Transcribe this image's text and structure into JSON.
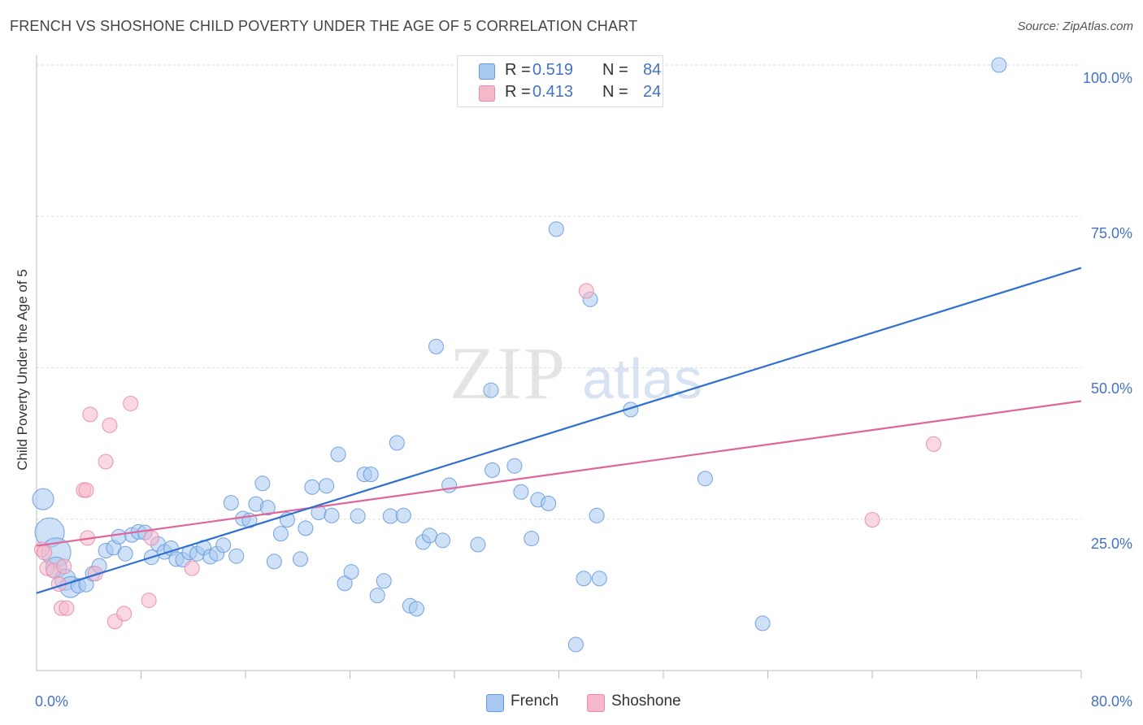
{
  "title": "FRENCH VS SHOSHONE CHILD POVERTY UNDER THE AGE OF 5 CORRELATION CHART",
  "source": "Source: ZipAtlas.com",
  "watermark": {
    "zip": "ZIP",
    "atlas": "atlas"
  },
  "colors": {
    "french_fill": "#a8c8f0",
    "french_stroke": "#6699dd",
    "french_line": "#2f6fd0",
    "shoshone_fill": "#f5b8cb",
    "shoshone_stroke": "#e88aa8",
    "shoshone_line": "#e0659a",
    "tick_text": "#4472c4",
    "grid": "#dddddd"
  },
  "stats": [
    {
      "r_label": "R =",
      "r_value": "0.519",
      "n_label": "N =",
      "n_value": "84"
    },
    {
      "r_label": "R =",
      "r_value": "0.413",
      "n_label": "N =",
      "n_value": "24"
    }
  ],
  "legend": {
    "french": "French",
    "shoshone": "Shoshone"
  },
  "chart_data": {
    "type": "scatter",
    "title": "FRENCH VS SHOSHONE CHILD POVERTY UNDER THE AGE OF 5 CORRELATION CHART",
    "xlabel": "",
    "ylabel": "Child Poverty Under the Age of 5",
    "xlim": [
      0,
      80
    ],
    "ylim": [
      0,
      100
    ],
    "x_tick_labels": [
      "0.0%",
      "80.0%"
    ],
    "y_ticks": [
      25,
      50,
      75,
      100
    ],
    "y_tick_labels": [
      "25.0%",
      "50.0%",
      "75.0%",
      "100.0%"
    ],
    "grid": true,
    "legend_position": "bottom",
    "series": [
      {
        "name": "French",
        "r": 0.519,
        "n": 84,
        "trend": {
          "x": [
            0,
            80
          ],
          "y": [
            12.8,
            66.5
          ]
        },
        "points": [
          {
            "x": 0.5,
            "y": 28.3,
            "s": 2
          },
          {
            "x": 1.0,
            "y": 22.8,
            "s": 3
          },
          {
            "x": 1.5,
            "y": 19.5,
            "s": 3
          },
          {
            "x": 1.5,
            "y": 17.0,
            "s": 2
          },
          {
            "x": 2.2,
            "y": 15.0,
            "s": 2
          },
          {
            "x": 2.6,
            "y": 13.8,
            "s": 2
          },
          {
            "x": 3.2,
            "y": 14.0,
            "s": 1
          },
          {
            "x": 3.8,
            "y": 14.2,
            "s": 1
          },
          {
            "x": 4.3,
            "y": 16.0,
            "s": 1
          },
          {
            "x": 4.8,
            "y": 17.3,
            "s": 1
          },
          {
            "x": 5.3,
            "y": 19.8,
            "s": 1
          },
          {
            "x": 5.9,
            "y": 20.3,
            "s": 1
          },
          {
            "x": 6.3,
            "y": 22.1,
            "s": 1
          },
          {
            "x": 6.8,
            "y": 19.3,
            "s": 1
          },
          {
            "x": 7.3,
            "y": 22.4,
            "s": 1
          },
          {
            "x": 7.8,
            "y": 22.9,
            "s": 1
          },
          {
            "x": 8.3,
            "y": 22.8,
            "s": 1
          },
          {
            "x": 8.8,
            "y": 18.7,
            "s": 1
          },
          {
            "x": 9.3,
            "y": 20.9,
            "s": 1
          },
          {
            "x": 9.8,
            "y": 19.6,
            "s": 1
          },
          {
            "x": 10.3,
            "y": 20.2,
            "s": 1
          },
          {
            "x": 10.7,
            "y": 18.4,
            "s": 1
          },
          {
            "x": 11.2,
            "y": 18.3,
            "s": 1
          },
          {
            "x": 11.7,
            "y": 19.5,
            "s": 1
          },
          {
            "x": 12.3,
            "y": 19.3,
            "s": 1
          },
          {
            "x": 12.8,
            "y": 20.3,
            "s": 1
          },
          {
            "x": 13.3,
            "y": 18.8,
            "s": 1
          },
          {
            "x": 13.8,
            "y": 19.3,
            "s": 1
          },
          {
            "x": 14.3,
            "y": 20.7,
            "s": 1
          },
          {
            "x": 15.3,
            "y": 18.9,
            "s": 1
          },
          {
            "x": 14.9,
            "y": 27.7,
            "s": 1
          },
          {
            "x": 15.8,
            "y": 25.1,
            "s": 1
          },
          {
            "x": 16.3,
            "y": 24.8,
            "s": 1
          },
          {
            "x": 16.8,
            "y": 27.5,
            "s": 1
          },
          {
            "x": 17.7,
            "y": 26.9,
            "s": 1
          },
          {
            "x": 17.3,
            "y": 30.9,
            "s": 1
          },
          {
            "x": 18.2,
            "y": 18.0,
            "s": 1
          },
          {
            "x": 18.7,
            "y": 22.6,
            "s": 1
          },
          {
            "x": 19.2,
            "y": 24.9,
            "s": 1
          },
          {
            "x": 20.2,
            "y": 18.4,
            "s": 1
          },
          {
            "x": 20.6,
            "y": 23.5,
            "s": 1
          },
          {
            "x": 21.1,
            "y": 30.3,
            "s": 1
          },
          {
            "x": 21.6,
            "y": 26.1,
            "s": 1
          },
          {
            "x": 22.2,
            "y": 30.5,
            "s": 1
          },
          {
            "x": 22.6,
            "y": 25.6,
            "s": 1
          },
          {
            "x": 23.1,
            "y": 35.7,
            "s": 1
          },
          {
            "x": 23.6,
            "y": 14.4,
            "s": 1
          },
          {
            "x": 24.1,
            "y": 16.3,
            "s": 1
          },
          {
            "x": 24.6,
            "y": 25.5,
            "s": 1
          },
          {
            "x": 25.1,
            "y": 32.4,
            "s": 1
          },
          {
            "x": 25.6,
            "y": 32.4,
            "s": 1
          },
          {
            "x": 26.1,
            "y": 12.4,
            "s": 1
          },
          {
            "x": 26.6,
            "y": 14.8,
            "s": 1
          },
          {
            "x": 27.1,
            "y": 25.5,
            "s": 1
          },
          {
            "x": 27.6,
            "y": 37.6,
            "s": 1
          },
          {
            "x": 28.1,
            "y": 25.6,
            "s": 1
          },
          {
            "x": 28.6,
            "y": 10.7,
            "s": 1
          },
          {
            "x": 29.1,
            "y": 10.2,
            "s": 1
          },
          {
            "x": 29.6,
            "y": 21.2,
            "s": 1
          },
          {
            "x": 30.1,
            "y": 22.3,
            "s": 1
          },
          {
            "x": 30.6,
            "y": 53.5,
            "s": 1
          },
          {
            "x": 31.1,
            "y": 21.5,
            "s": 1
          },
          {
            "x": 31.6,
            "y": 30.6,
            "s": 1
          },
          {
            "x": 33.8,
            "y": 20.8,
            "s": 1
          },
          {
            "x": 34.8,
            "y": 46.3,
            "s": 1
          },
          {
            "x": 34.9,
            "y": 33.1,
            "s": 1
          },
          {
            "x": 36.6,
            "y": 33.8,
            "s": 1
          },
          {
            "x": 37.1,
            "y": 29.5,
            "s": 1
          },
          {
            "x": 37.9,
            "y": 21.8,
            "s": 1
          },
          {
            "x": 38.4,
            "y": 28.2,
            "s": 1
          },
          {
            "x": 39.2,
            "y": 27.6,
            "s": 1
          },
          {
            "x": 39.6,
            "y": 100.0,
            "s": 1
          },
          {
            "x": 39.8,
            "y": 72.9,
            "s": 1
          },
          {
            "x": 41.3,
            "y": 4.3,
            "s": 1
          },
          {
            "x": 41.9,
            "y": 15.2,
            "s": 1
          },
          {
            "x": 42.4,
            "y": 61.3,
            "s": 1
          },
          {
            "x": 42.9,
            "y": 25.6,
            "s": 1
          },
          {
            "x": 43.1,
            "y": 15.2,
            "s": 1
          },
          {
            "x": 45.5,
            "y": 43.1,
            "s": 1
          },
          {
            "x": 46.1,
            "y": 100.0,
            "s": 1
          },
          {
            "x": 51.2,
            "y": 31.7,
            "s": 1
          },
          {
            "x": 55.6,
            "y": 7.8,
            "s": 1
          },
          {
            "x": 73.7,
            "y": 100.0,
            "s": 1
          }
        ]
      },
      {
        "name": "Shoshone",
        "r": 0.413,
        "n": 24,
        "trend": {
          "x": [
            0,
            80
          ],
          "y": [
            20.6,
            44.5
          ]
        },
        "points": [
          {
            "x": 0.4,
            "y": 20.0,
            "s": 1
          },
          {
            "x": 0.6,
            "y": 19.5,
            "s": 1
          },
          {
            "x": 0.8,
            "y": 16.9,
            "s": 1
          },
          {
            "x": 1.3,
            "y": 16.5,
            "s": 1
          },
          {
            "x": 1.7,
            "y": 14.3,
            "s": 1
          },
          {
            "x": 2.1,
            "y": 17.2,
            "s": 1
          },
          {
            "x": 1.9,
            "y": 10.3,
            "s": 1
          },
          {
            "x": 2.3,
            "y": 10.3,
            "s": 1
          },
          {
            "x": 3.6,
            "y": 29.8,
            "s": 1
          },
          {
            "x": 3.8,
            "y": 29.8,
            "s": 1
          },
          {
            "x": 3.9,
            "y": 21.9,
            "s": 1
          },
          {
            "x": 4.1,
            "y": 42.3,
            "s": 1
          },
          {
            "x": 4.5,
            "y": 16.0,
            "s": 1
          },
          {
            "x": 5.3,
            "y": 34.5,
            "s": 1
          },
          {
            "x": 5.6,
            "y": 40.5,
            "s": 1
          },
          {
            "x": 6.0,
            "y": 8.1,
            "s": 1
          },
          {
            "x": 6.7,
            "y": 9.4,
            "s": 1
          },
          {
            "x": 7.2,
            "y": 44.1,
            "s": 1
          },
          {
            "x": 8.6,
            "y": 11.6,
            "s": 1
          },
          {
            "x": 8.8,
            "y": 21.9,
            "s": 1
          },
          {
            "x": 11.9,
            "y": 16.9,
            "s": 1
          },
          {
            "x": 42.1,
            "y": 62.7,
            "s": 1
          },
          {
            "x": 64.0,
            "y": 24.9,
            "s": 1
          },
          {
            "x": 68.7,
            "y": 37.4,
            "s": 1
          }
        ]
      }
    ]
  }
}
